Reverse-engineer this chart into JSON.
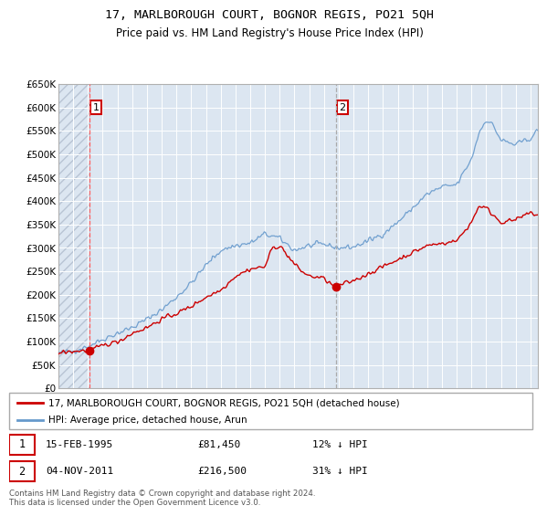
{
  "title": "17, MARLBOROUGH COURT, BOGNOR REGIS, PO21 5QH",
  "subtitle": "Price paid vs. HM Land Registry's House Price Index (HPI)",
  "ylim": [
    0,
    650000
  ],
  "xlim_start": 1993.0,
  "xlim_end": 2025.5,
  "background_color": "#dce6f1",
  "hatch_color": "#b8c4d4",
  "sale1_date": 1995.12,
  "sale1_price": 81450,
  "sale1_label": "1",
  "sale2_date": 2011.84,
  "sale2_price": 216500,
  "sale2_label": "2",
  "legend_line1": "17, MARLBOROUGH COURT, BOGNOR REGIS, PO21 5QH (detached house)",
  "legend_line2": "HPI: Average price, detached house, Arun",
  "annotation1_date": "15-FEB-1995",
  "annotation1_price": "£81,450",
  "annotation1_hpi": "12% ↓ HPI",
  "annotation2_date": "04-NOV-2011",
  "annotation2_price": "£216,500",
  "annotation2_hpi": "31% ↓ HPI",
  "footer": "Contains HM Land Registry data © Crown copyright and database right 2024.\nThis data is licensed under the Open Government Licence v3.0.",
  "sale_color": "#cc0000",
  "hpi_color": "#6699cc",
  "vline1_color": "#ff6666",
  "vline2_color": "#aaaaaa"
}
